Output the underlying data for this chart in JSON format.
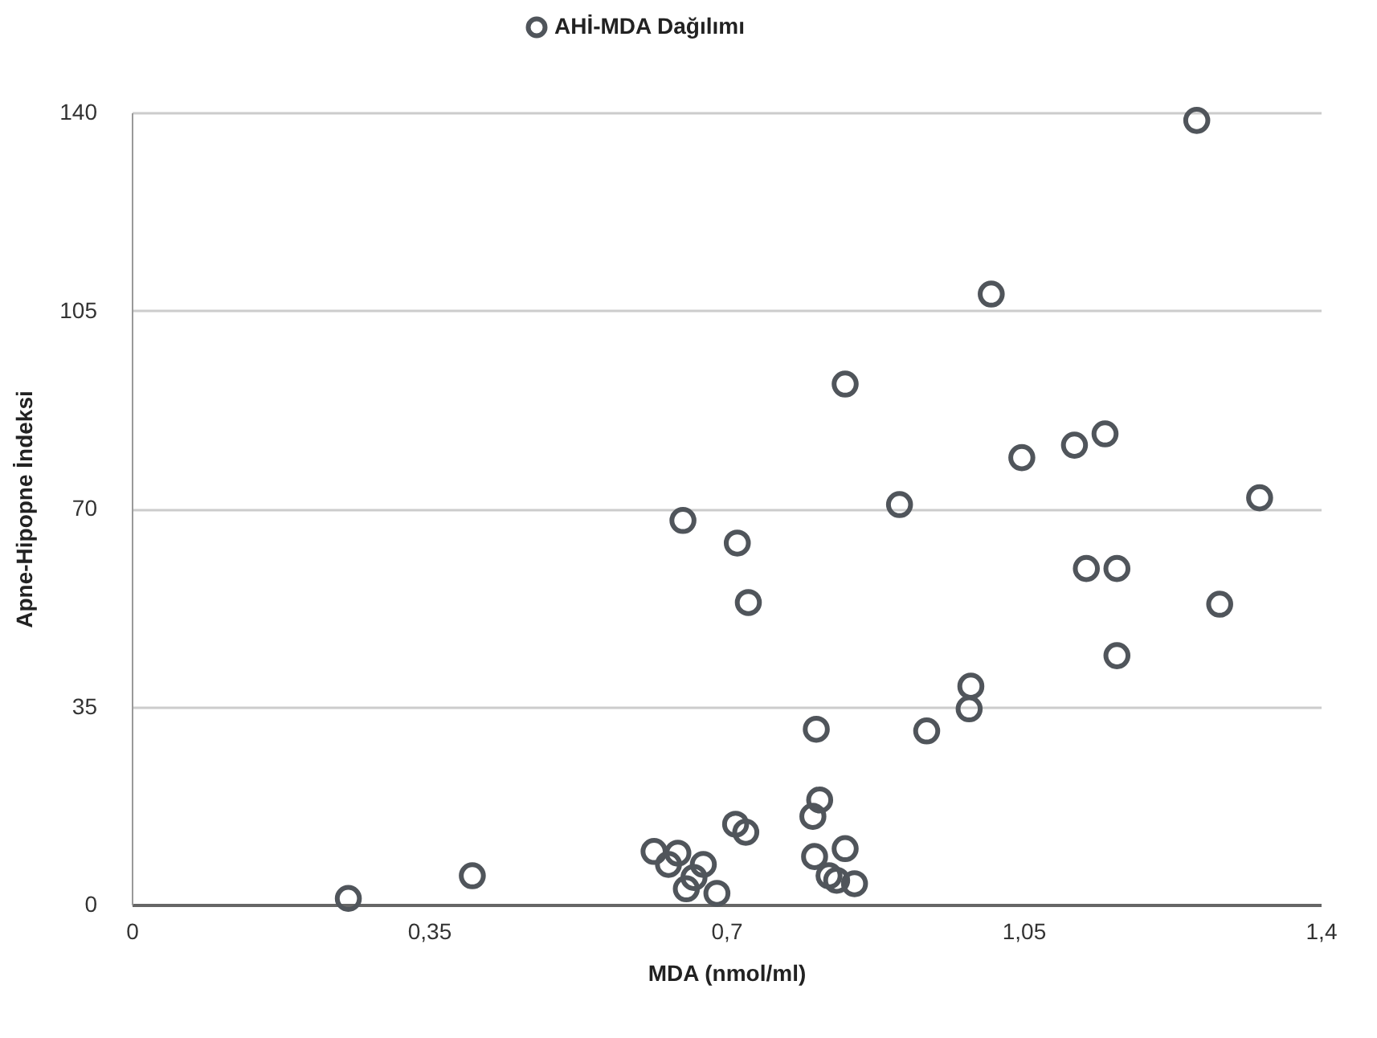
{
  "chart_data": {
    "type": "scatter",
    "xlabel": "MDA (nmol/ml)",
    "ylabel": "Apne-Hipopne İndeksi",
    "series": [
      {
        "name": "AHİ-MDA Dağılımı",
        "color": "#50555b",
        "x": [
          0.255,
          0.401,
          0.649,
          0.713,
          0.726,
          0.84,
          0.904,
          1.012,
          1.048,
          1.11,
          1.146,
          1.124,
          1.16,
          1.254,
          1.281,
          1.328,
          1.16,
          0.988,
          0.986,
          0.936,
          0.806,
          0.81,
          0.802,
          0.711,
          0.723,
          0.615,
          0.643,
          0.632,
          0.673,
          0.662,
          0.653,
          0.689,
          0.804,
          0.84,
          0.821,
          0.83,
          0.851
        ],
        "values": [
          1.1,
          5.1,
          67.9,
          63.9,
          53.4,
          92.0,
          70.7,
          107.9,
          79.0,
          81.2,
          83.2,
          59.4,
          59.4,
          138.6,
          53.1,
          71.9,
          44.0,
          38.6,
          34.6,
          30.7,
          31.0,
          18.5,
          15.6,
          14.2,
          12.8,
          9.4,
          9.1,
          7.1,
          7.1,
          4.8,
          2.8,
          2.0,
          8.5,
          9.9,
          5.1,
          4.3,
          3.7
        ]
      }
    ],
    "xlim": [
      0,
      1.4
    ],
    "xticks": [
      0,
      {
        "value": 0.35,
        "label": "0,35"
      },
      {
        "value": 0.7,
        "label": "0,7"
      },
      {
        "value": 1.05,
        "label": "1,05"
      },
      {
        "value": 1.4,
        "label": "1,4"
      }
    ],
    "ylim": [
      0,
      140
    ],
    "yticks": [
      0,
      35,
      70,
      105,
      140
    ],
    "grid": "y",
    "legend": "top",
    "marker": "circle"
  }
}
